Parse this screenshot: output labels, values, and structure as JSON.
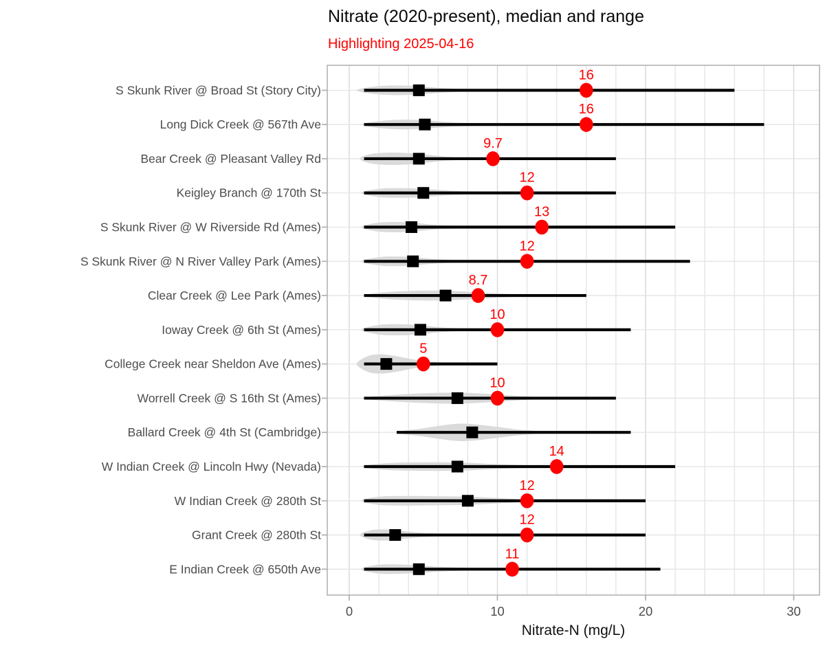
{
  "title": "Nitrate (2020-present), median and range",
  "subtitle": "Highlighting 2025-04-16",
  "chart_data": {
    "type": "violin-range-dot",
    "title": "Nitrate (2020-present), median and range",
    "subtitle": "Highlighting 2025-04-16",
    "xlabel": "Nitrate-N (mg/L)",
    "x_tick_labels": [
      "0",
      "10",
      "20",
      "30"
    ],
    "x_ticks": [
      0,
      10,
      20,
      30
    ],
    "x_minor_step": 2,
    "xlim": [
      -1.5,
      31.7
    ],
    "grid": true,
    "legend": "none",
    "colors": {
      "highlight": "#fe0000",
      "range_line": "#000000",
      "median_square": "#000000",
      "violin_fill": "#d8d8d8",
      "grid_minor": "#e4e4e4",
      "grid_major": "#d7d7d7",
      "panel_border": "#b3b3b3",
      "axis_text": "#4d4d4d",
      "tick_mark": "#b3b3b3"
    },
    "rows": [
      {
        "label": "S Skunk River @ Broad St (Story City)",
        "min": 1,
        "max": 26,
        "median": 4.7,
        "highlight": 16,
        "highlight_label": "16",
        "violin": [
          [
            0.5,
            0
          ],
          [
            1.5,
            5
          ],
          [
            3,
            7
          ],
          [
            4.7,
            6
          ],
          [
            6.5,
            3
          ],
          [
            8.5,
            1.5
          ],
          [
            10.5,
            0
          ]
        ]
      },
      {
        "label": "Long Dick Creek @ 567th Ave",
        "min": 1,
        "max": 28,
        "median": 5.1,
        "highlight": 16,
        "highlight_label": "16",
        "violin": [
          [
            0.8,
            0
          ],
          [
            2,
            5
          ],
          [
            3.5,
            7
          ],
          [
            5.1,
            6
          ],
          [
            7,
            3
          ],
          [
            9,
            1.5
          ],
          [
            10.5,
            0
          ]
        ]
      },
      {
        "label": "Bear Creek @ Pleasant Valley Rd",
        "min": 1,
        "max": 18,
        "median": 4.7,
        "highlight": 9.7,
        "highlight_label": "9.7",
        "violin": [
          [
            0.7,
            0
          ],
          [
            1.5,
            7
          ],
          [
            3,
            9
          ],
          [
            4.7,
            7
          ],
          [
            6.5,
            3
          ],
          [
            8,
            1.5
          ],
          [
            9.5,
            0
          ]
        ]
      },
      {
        "label": "Keigley Branch @ 170th St",
        "min": 1,
        "max": 18,
        "median": 5.0,
        "highlight": 12,
        "highlight_label": "12",
        "violin": [
          [
            0.8,
            0
          ],
          [
            2,
            6
          ],
          [
            3.5,
            7
          ],
          [
            5,
            6
          ],
          [
            7,
            3
          ],
          [
            9,
            1.5
          ],
          [
            11,
            0.8
          ],
          [
            13,
            0
          ]
        ]
      },
      {
        "label": "S Skunk River @ W Riverside Rd (Ames)",
        "min": 1,
        "max": 22,
        "median": 4.2,
        "highlight": 13,
        "highlight_label": "13",
        "violin": [
          [
            0.8,
            0
          ],
          [
            1.8,
            6
          ],
          [
            3,
            7.5
          ],
          [
            4.2,
            6.5
          ],
          [
            6,
            3
          ],
          [
            8,
            1.2
          ],
          [
            9.5,
            0
          ]
        ]
      },
      {
        "label": "S Skunk River @ N River Valley Park (Ames)",
        "min": 1,
        "max": 23,
        "median": 4.3,
        "highlight": 12,
        "highlight_label": "12",
        "violin": [
          [
            0.8,
            0
          ],
          [
            2,
            6
          ],
          [
            3.2,
            7
          ],
          [
            4.3,
            6
          ],
          [
            6,
            3
          ],
          [
            8,
            1.2
          ],
          [
            10,
            0
          ]
        ]
      },
      {
        "label": "Clear Creek @ Lee Park (Ames)",
        "min": 1,
        "max": 16,
        "median": 6.5,
        "highlight": 8.7,
        "highlight_label": "8.7",
        "violin": [
          [
            0.9,
            0
          ],
          [
            2.5,
            5
          ],
          [
            4.5,
            7
          ],
          [
            6.5,
            7
          ],
          [
            8.5,
            5
          ],
          [
            10.5,
            2.5
          ],
          [
            12.5,
            1
          ],
          [
            14,
            0
          ]
        ]
      },
      {
        "label": "Ioway Creek @ 6th St (Ames)",
        "min": 1,
        "max": 19,
        "median": 4.8,
        "highlight": 10,
        "highlight_label": "10",
        "violin": [
          [
            0.8,
            0
          ],
          [
            2,
            7
          ],
          [
            3.5,
            8
          ],
          [
            4.8,
            6.5
          ],
          [
            6.5,
            3
          ],
          [
            8.5,
            1.5
          ],
          [
            10.5,
            0.8
          ],
          [
            12,
            0
          ]
        ]
      },
      {
        "label": "College Creek near Sheldon Ave (Ames)",
        "min": 1,
        "max": 10,
        "median": 2.5,
        "highlight": 5,
        "highlight_label": "5",
        "violin": [
          [
            0.5,
            0
          ],
          [
            1.2,
            11
          ],
          [
            2,
            14
          ],
          [
            3,
            12
          ],
          [
            4.5,
            6
          ],
          [
            6,
            2.5
          ],
          [
            7.5,
            0.8
          ],
          [
            8,
            0
          ]
        ]
      },
      {
        "label": "Worrell Creek @ S 16th St (Ames)",
        "min": 1,
        "max": 18,
        "median": 7.3,
        "highlight": 10,
        "highlight_label": "10",
        "violin": [
          [
            0.8,
            0
          ],
          [
            2.5,
            4
          ],
          [
            5,
            7
          ],
          [
            7.3,
            8
          ],
          [
            9.5,
            6
          ],
          [
            11.5,
            3
          ],
          [
            13.5,
            1
          ],
          [
            14.5,
            0
          ]
        ]
      },
      {
        "label": "Ballard Creek @ 4th St (Cambridge)",
        "min": 3.2,
        "max": 19,
        "median": 8.3,
        "highlight": null,
        "highlight_label": "",
        "violin": [
          [
            3.2,
            0
          ],
          [
            5,
            6
          ],
          [
            7,
            12
          ],
          [
            8.3,
            12
          ],
          [
            10,
            8
          ],
          [
            11.5,
            4
          ],
          [
            13,
            1.5
          ],
          [
            13.8,
            0
          ]
        ]
      },
      {
        "label": "W Indian Creek @ Lincoln Hwy (Nevada)",
        "min": 1,
        "max": 22,
        "median": 7.3,
        "highlight": 14,
        "highlight_label": "14",
        "violin": [
          [
            0.8,
            0
          ],
          [
            2,
            4
          ],
          [
            4,
            6
          ],
          [
            7.3,
            6
          ],
          [
            9.5,
            4
          ],
          [
            12,
            2
          ],
          [
            14,
            1
          ],
          [
            15.5,
            0
          ]
        ]
      },
      {
        "label": "W Indian Creek @ 280th St",
        "min": 1,
        "max": 20,
        "median": 8.0,
        "highlight": 12,
        "highlight_label": "12",
        "violin": [
          [
            0.8,
            0
          ],
          [
            2,
            6
          ],
          [
            4,
            7
          ],
          [
            6,
            6.5
          ],
          [
            8,
            6
          ],
          [
            10,
            4
          ],
          [
            11.5,
            2
          ],
          [
            13,
            0
          ]
        ]
      },
      {
        "label": "Grant Creek @ 280th St",
        "min": 1,
        "max": 20,
        "median": 3.1,
        "highlight": 12,
        "highlight_label": "12",
        "violin": [
          [
            0.7,
            0
          ],
          [
            1.5,
            7
          ],
          [
            2.5,
            8
          ],
          [
            3.5,
            6
          ],
          [
            5,
            3
          ],
          [
            7,
            1.5
          ],
          [
            9,
            1
          ],
          [
            11.5,
            0
          ]
        ]
      },
      {
        "label": "E Indian Creek @ 650th Ave",
        "min": 1,
        "max": 21,
        "median": 4.7,
        "highlight": 11,
        "highlight_label": "11",
        "violin": [
          [
            0.8,
            0
          ],
          [
            1.8,
            6
          ],
          [
            3,
            7
          ],
          [
            4.7,
            5.5
          ],
          [
            6.5,
            3
          ],
          [
            9,
            1.5
          ],
          [
            11.5,
            0.8
          ],
          [
            13.5,
            0
          ]
        ]
      }
    ]
  }
}
